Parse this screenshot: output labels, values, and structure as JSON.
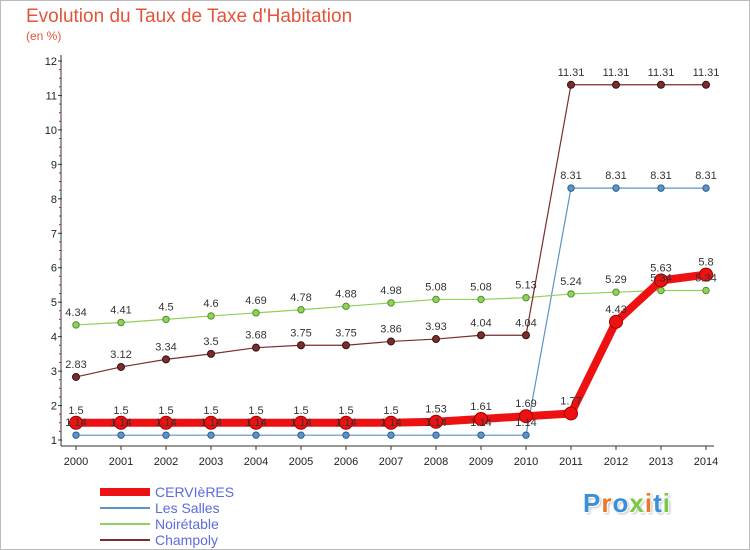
{
  "title": "Evolution du Taux de Taxe d'Habitation",
  "unit": "(en %)",
  "brand": "Proxiti",
  "chart_data": {
    "type": "line",
    "title": "Evolution du Taux de Taxe d'Habitation",
    "ylabel": "(en %)",
    "xlabel": "",
    "x": [
      "2000",
      "2001",
      "2002",
      "2003",
      "2004",
      "2005",
      "2006",
      "2007",
      "2008",
      "2009",
      "2010",
      "2011",
      "2012",
      "2013",
      "2014"
    ],
    "yticks": [
      1,
      2,
      3,
      4,
      5,
      6,
      7,
      8,
      9,
      10,
      11,
      12
    ],
    "ylim": [
      1,
      12
    ],
    "grid": false,
    "legend_position": "bottom-left",
    "series": [
      {
        "name": "CERVIèRES",
        "color": "#ee1111",
        "values": [
          1.5,
          1.5,
          1.5,
          1.5,
          1.5,
          1.5,
          1.5,
          1.5,
          1.53,
          1.61,
          1.69,
          1.77,
          4.43,
          5.63,
          5.8
        ],
        "labels": [
          "1.5",
          "1.5",
          "1.5",
          "1.5",
          "1.5",
          "1.5",
          "1.5",
          "1.5",
          "1.53",
          "1.61",
          "1.69",
          "1.77",
          "4.43",
          "5.63",
          "5.8"
        ]
      },
      {
        "name": "Les Salles",
        "color": "#5b93c8",
        "values": [
          1.14,
          1.14,
          1.14,
          1.14,
          1.14,
          1.14,
          1.14,
          1.14,
          1.14,
          1.14,
          1.14,
          8.31,
          8.31,
          8.31,
          8.31
        ],
        "labels": [
          "1.14",
          "1.14",
          "1.14",
          "1.14",
          "1.14",
          "1.14",
          "1.14",
          "1.14",
          "1.14",
          "1.14",
          "1.14",
          "8.31",
          "8.31",
          "8.31",
          "8.31"
        ]
      },
      {
        "name": "Noirétable",
        "color": "#8fd15a",
        "values": [
          4.34,
          4.41,
          4.5,
          4.6,
          4.69,
          4.78,
          4.88,
          4.98,
          5.08,
          5.08,
          5.13,
          5.24,
          5.29,
          5.34,
          5.34
        ],
        "labels": [
          "4.34",
          "4.41",
          "4.5",
          "4.6",
          "4.69",
          "4.78",
          "4.88",
          "4.98",
          "5.08",
          "5.08",
          "5.13",
          "5.24",
          "5.29",
          "5.34",
          "5.34"
        ]
      },
      {
        "name": "Champoly",
        "color": "#7a2d2d",
        "values": [
          2.83,
          3.12,
          3.34,
          3.5,
          3.68,
          3.75,
          3.75,
          3.86,
          3.93,
          4.04,
          4.04,
          11.31,
          11.31,
          11.31,
          11.31
        ],
        "labels": [
          "2.83",
          "3.12",
          "3.34",
          "3.5",
          "3.68",
          "3.75",
          "3.75",
          "3.86",
          "3.93",
          "4.04",
          "4.04",
          "11.31",
          "11.31",
          "11.31",
          "11.31"
        ]
      }
    ]
  }
}
